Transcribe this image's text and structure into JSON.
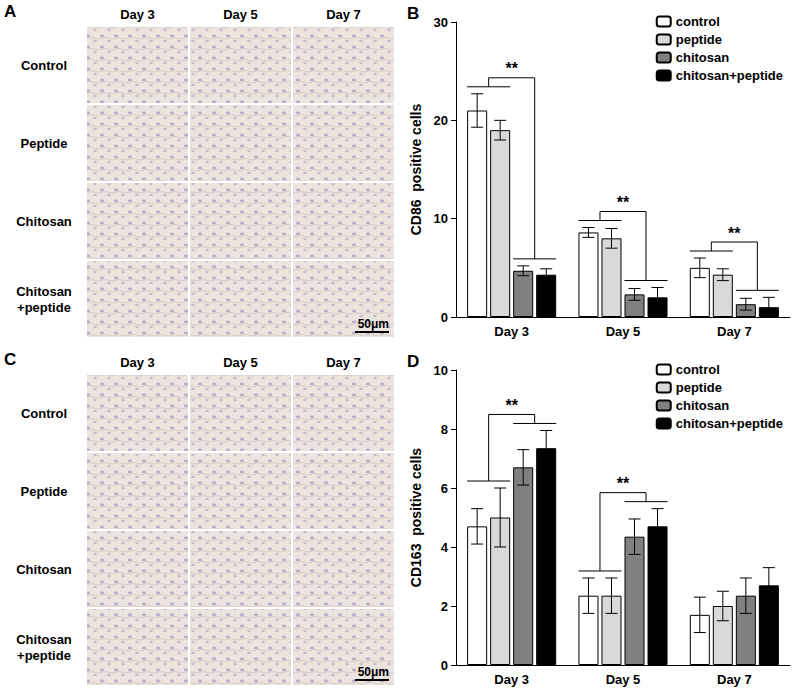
{
  "image_panels": [
    {
      "label": "A",
      "columns": [
        "Day 3",
        "Day 5",
        "Day 7"
      ],
      "rows": [
        "Control",
        "Peptide",
        "Chitosan",
        "Chitosan\n+peptide"
      ],
      "scale_bar": "50μm"
    },
    {
      "label": "C",
      "columns": [
        "Day 3",
        "Day 5",
        "Day 7"
      ],
      "rows": [
        "Control",
        "Peptide",
        "Chitosan",
        "Chitosan\n+peptide"
      ],
      "scale_bar": "50μm"
    }
  ],
  "chart_data": [
    {
      "type": "bar",
      "title": "B",
      "y_label": "CD86  positive cells",
      "categories": [
        "Day 3",
        "Day 5",
        "Day 7"
      ],
      "series": [
        {
          "name": "control",
          "color": "#ffffff",
          "values": [
            21,
            8.6,
            5.0
          ],
          "errors": [
            1.7,
            0.5,
            1.0
          ]
        },
        {
          "name": "peptide",
          "color": "#d9d9d9",
          "values": [
            19,
            8.0,
            4.3
          ],
          "errors": [
            1.0,
            1.0,
            0.6
          ]
        },
        {
          "name": "chitosan",
          "color": "#808080",
          "values": [
            4.7,
            2.3,
            1.3
          ],
          "errors": [
            0.5,
            0.6,
            0.6
          ]
        },
        {
          "name": "chitosan+peptide",
          "color": "#000000",
          "values": [
            4.3,
            2.0,
            1.0
          ],
          "errors": [
            0.6,
            1.0,
            1.0
          ]
        }
      ],
      "ylim": [
        0,
        30
      ],
      "yticks": [
        0,
        10,
        20,
        30
      ],
      "grid": false,
      "legend": "upper right",
      "annotations": [
        {
          "text": "**",
          "category": "Day 3",
          "groups": [
            [
              "control",
              "peptide"
            ],
            [
              "chitosan",
              "chitosan+peptide"
            ]
          ]
        },
        {
          "text": "**",
          "category": "Day 5",
          "groups": [
            [
              "control",
              "peptide"
            ],
            [
              "chitosan",
              "chitosan+peptide"
            ]
          ]
        },
        {
          "text": "**",
          "category": "Day 7",
          "groups": [
            [
              "control",
              "peptide"
            ],
            [
              "chitosan",
              "chitosan+peptide"
            ]
          ]
        }
      ]
    },
    {
      "type": "bar",
      "title": "D",
      "y_label": "CD163  positive cells",
      "categories": [
        "Day 3",
        "Day 5",
        "Day 7"
      ],
      "series": [
        {
          "name": "control",
          "color": "#ffffff",
          "values": [
            4.7,
            2.35,
            1.7
          ],
          "errors": [
            0.6,
            0.6,
            0.6
          ]
        },
        {
          "name": "peptide",
          "color": "#d9d9d9",
          "values": [
            5.0,
            2.35,
            2.0
          ],
          "errors": [
            1.0,
            0.6,
            0.5
          ]
        },
        {
          "name": "chitosan",
          "color": "#808080",
          "values": [
            6.7,
            4.35,
            2.35
          ],
          "errors": [
            0.6,
            0.6,
            0.6
          ]
        },
        {
          "name": "chitosan+peptide",
          "color": "#000000",
          "values": [
            7.35,
            4.7,
            2.7
          ],
          "errors": [
            0.6,
            0.6,
            0.6
          ]
        }
      ],
      "ylim": [
        0,
        10
      ],
      "yticks": [
        0,
        2,
        4,
        6,
        8,
        10
      ],
      "grid": false,
      "legend": "upper right",
      "annotations": [
        {
          "text": "**",
          "category": "Day 3",
          "groups": [
            [
              "control",
              "peptide"
            ],
            [
              "chitosan",
              "chitosan+peptide"
            ]
          ]
        },
        {
          "text": "**",
          "category": "Day 5",
          "groups": [
            [
              "control",
              "peptide"
            ],
            [
              "chitosan",
              "chitosan+peptide"
            ]
          ]
        }
      ]
    }
  ]
}
